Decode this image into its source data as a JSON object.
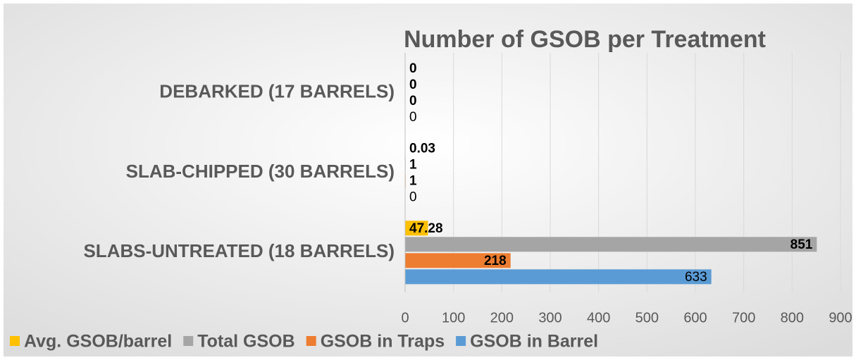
{
  "chart_data": {
    "type": "bar",
    "orientation": "horizontal",
    "title": "Number of GSOB per Treatment",
    "categories": [
      "DEBARKED (17 BARRELS)",
      "SLAB-CHIPPED (30 BARRELS)",
      "SLABS-UNTREATED (18 BARRELS)"
    ],
    "series": [
      {
        "name": "Avg. GSOB/barrel",
        "color": "#ffc000",
        "values": [
          0,
          0.03,
          47.28
        ]
      },
      {
        "name": "Total GSOB",
        "color": "#a5a5a5",
        "values": [
          0,
          1,
          851
        ]
      },
      {
        "name": "GSOB in Traps",
        "color": "#ed7d31",
        "values": [
          0,
          1,
          218
        ]
      },
      {
        "name": "GSOB in Barrel",
        "color": "#5b9bd5",
        "values": [
          0,
          0,
          633
        ]
      }
    ],
    "xlim": [
      0,
      900
    ],
    "xticks": [
      0,
      100,
      200,
      300,
      400,
      500,
      600,
      700,
      800,
      900
    ],
    "grid": true,
    "legend": "bottom"
  }
}
